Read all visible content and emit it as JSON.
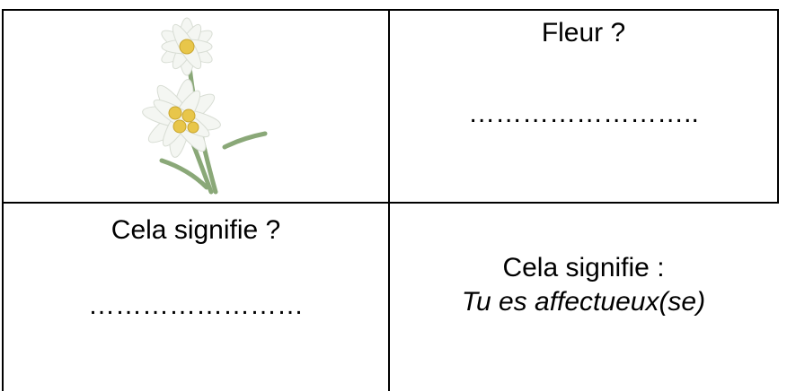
{
  "cells": [
    {
      "lines": [
        "Fleur ?",
        "……………………..",
        ""
      ]
    },
    {
      "lines": [
        "Cela signifie ?",
        "……………………"
      ]
    },
    {
      "lines": [
        "Cela signifie :",
        "Tu es affectueux(se)"
      ]
    }
  ]
}
